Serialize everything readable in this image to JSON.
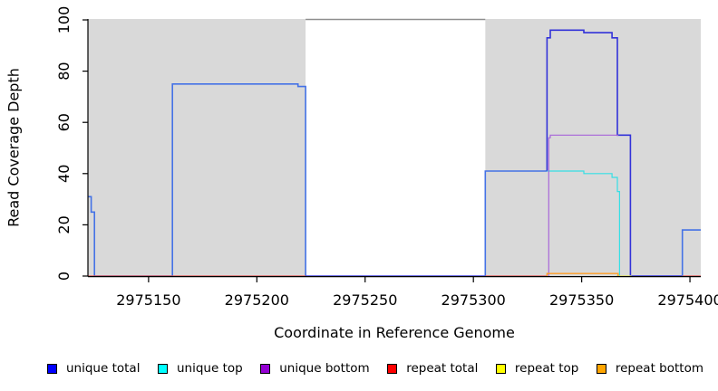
{
  "chart_data": {
    "type": "step-line",
    "title": "",
    "xlabel": "Coordinate in Reference Genome",
    "ylabel": "Read Coverage Depth",
    "xlim": [
      2975122,
      2975405
    ],
    "ylim": [
      0,
      100
    ],
    "x_ticks": [
      2975150,
      2975200,
      2975250,
      2975300,
      2975350,
      2975400
    ],
    "y_ticks": [
      0,
      20,
      40,
      60,
      80,
      100
    ],
    "grid": "off",
    "legend_position": "bottom",
    "background_bands": {
      "color": "#d9d9d9",
      "top_border_color": "#8f8f8f",
      "regions": [
        [
          2975122,
          2975222.5
        ],
        [
          2975305.5,
          2975405
        ]
      ]
    },
    "legend": [
      {
        "label": "unique total",
        "color": "#0000ff"
      },
      {
        "label": "unique top",
        "color": "#00ffff"
      },
      {
        "label": "unique bottom",
        "color": "#9400d3"
      },
      {
        "label": "repeat total",
        "color": "#ff0000"
      },
      {
        "label": "repeat top",
        "color": "#ffff00"
      },
      {
        "label": "repeat bottom",
        "color": "#ffa500"
      }
    ],
    "series": [
      {
        "name": "unique total",
        "width": 1.6,
        "parts": [
          {
            "color": "#4472e6",
            "points": [
              [
                2975122,
                31
              ],
              [
                2975123.5,
                31
              ],
              [
                2975123.5,
                25
              ],
              [
                2975125,
                25
              ],
              [
                2975125,
                0
              ],
              [
                2975161,
                0
              ],
              [
                2975161,
                75
              ],
              [
                2975219,
                75
              ],
              [
                2975219,
                74
              ],
              [
                2975222.5,
                74
              ],
              [
                2975222.5,
                0
              ]
            ]
          },
          {
            "color": "#4343dd",
            "points": [
              [
                2975222.5,
                0
              ],
              [
                2975305.5,
                0
              ]
            ]
          },
          {
            "color": "#4472e6",
            "points": [
              [
                2975305.5,
                0
              ],
              [
                2975305.5,
                41
              ],
              [
                2975334,
                41
              ]
            ]
          },
          {
            "color": "#3232d9",
            "points": [
              [
                2975334,
                41
              ],
              [
                2975334,
                93
              ],
              [
                2975335.5,
                93
              ],
              [
                2975335.5,
                96
              ],
              [
                2975351,
                96
              ],
              [
                2975351,
                95
              ],
              [
                2975364,
                95
              ],
              [
                2975364,
                93
              ],
              [
                2975366.5,
                93
              ],
              [
                2975366.5,
                55
              ],
              [
                2975372.5,
                55
              ],
              [
                2975372.5,
                0
              ],
              [
                2975396.5,
                0
              ]
            ]
          },
          {
            "color": "#4472e6",
            "points": [
              [
                2975396.5,
                0
              ],
              [
                2975396.5,
                18
              ],
              [
                2975405,
                18
              ]
            ]
          }
        ]
      },
      {
        "name": "unique top",
        "width": 1.2,
        "parts": [
          {
            "color": "#35dfe5",
            "points": [
              [
                2975334,
                41
              ],
              [
                2975351,
                41
              ],
              [
                2975351,
                40
              ],
              [
                2975364,
                40
              ],
              [
                2975364,
                38.5
              ],
              [
                2975366.5,
                38.5
              ],
              [
                2975366.5,
                33
              ],
              [
                2975367.5,
                33
              ],
              [
                2975367.5,
                0
              ]
            ]
          }
        ]
      },
      {
        "name": "unique bottom",
        "width": 1.2,
        "parts": [
          {
            "color": "#a866d9",
            "points": [
              [
                2975334.8,
                0
              ],
              [
                2975334.8,
                54
              ],
              [
                2975335.5,
                54
              ],
              [
                2975335.5,
                55
              ],
              [
                2975367,
                55
              ]
            ]
          }
        ]
      },
      {
        "name": "repeat total",
        "width": 1.2,
        "parts": [
          {
            "color": "#e04f4f",
            "points": [
              [
                2975122,
                0
              ],
              [
                2975222.5,
                0
              ]
            ]
          },
          {
            "color": "#e04f4f",
            "points": [
              [
                2975305.5,
                0
              ],
              [
                2975334,
                0
              ]
            ]
          },
          {
            "color": "#e04f4f",
            "points": [
              [
                2975396.5,
                0
              ],
              [
                2975405,
                0
              ]
            ]
          }
        ]
      },
      {
        "name": "repeat top",
        "width": 1.2,
        "parts": [
          {
            "color": "#ddde4e",
            "points": [
              [
                2975366,
                0
              ],
              [
                2975373,
                0
              ]
            ]
          }
        ]
      },
      {
        "name": "repeat bottom",
        "width": 1.4,
        "parts": [
          {
            "color": "#ff9d26",
            "points": [
              [
                2975334,
                0
              ],
              [
                2975334,
                1
              ],
              [
                2975366.8,
                1
              ],
              [
                2975366.8,
                0
              ]
            ]
          }
        ]
      }
    ]
  }
}
